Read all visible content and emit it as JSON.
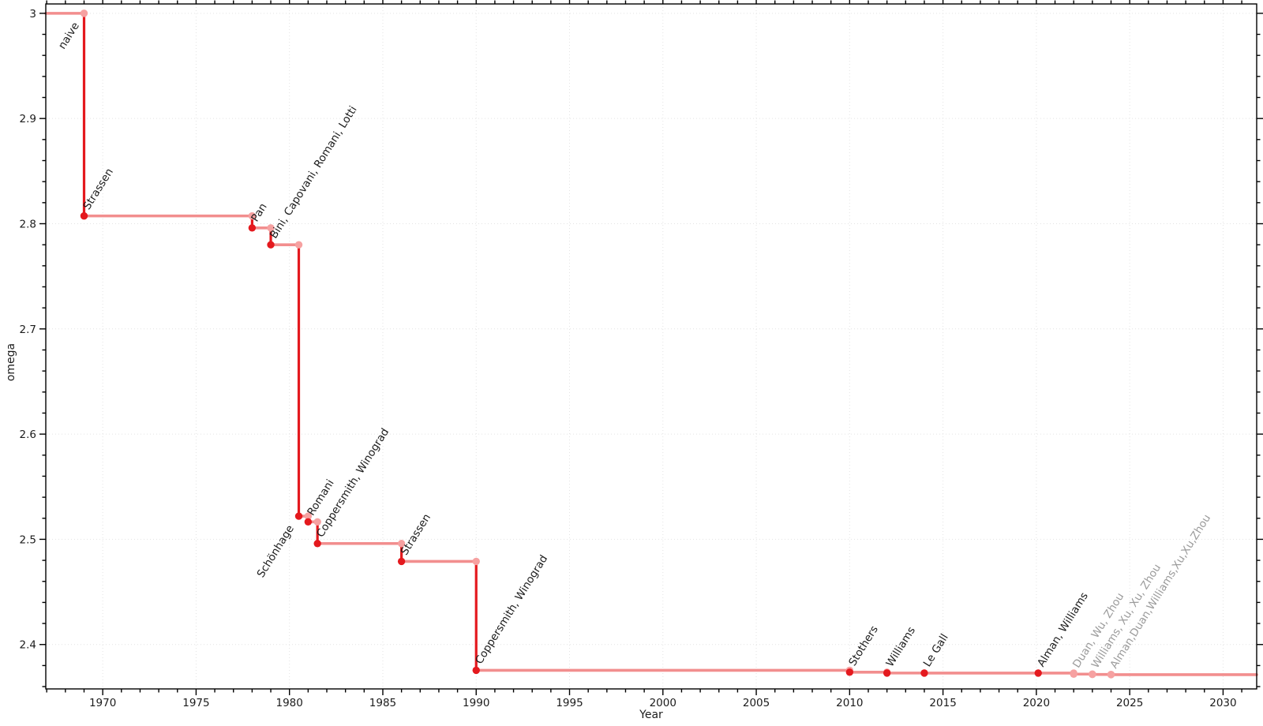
{
  "chart_data": {
    "type": "line",
    "subtype": "step-post",
    "title": "",
    "xlabel": "Year",
    "ylabel": "omega",
    "xlim": [
      1966.95,
      2031.8
    ],
    "ylim": [
      2.3578,
      3.0089
    ],
    "xticks": [
      {
        "value": 1970,
        "label": "1970"
      },
      {
        "value": 1975,
        "label": "1975"
      },
      {
        "value": 1980,
        "label": "1980"
      },
      {
        "value": 1985,
        "label": "1985"
      },
      {
        "value": 1990,
        "label": "1990"
      },
      {
        "value": 1995,
        "label": "1995"
      },
      {
        "value": 2000,
        "label": "2000"
      },
      {
        "value": 2005,
        "label": "2005"
      },
      {
        "value": 2010,
        "label": "2010"
      },
      {
        "value": 2015,
        "label": "2015"
      },
      {
        "value": 2020,
        "label": "2020"
      },
      {
        "value": 2025,
        "label": "2025"
      },
      {
        "value": 2030,
        "label": "2030"
      }
    ],
    "yticks": [
      {
        "value": 2.4,
        "label": "2.4"
      },
      {
        "value": 2.5,
        "label": "2.5"
      },
      {
        "value": 2.6,
        "label": "2.6"
      },
      {
        "value": 2.7,
        "label": "2.7"
      },
      {
        "value": 2.8,
        "label": "2.8"
      },
      {
        "value": 2.9,
        "label": "2.9"
      },
      {
        "value": 3.0,
        "label": "3"
      }
    ],
    "x_minor_step": 1,
    "y_minor_step": 0.02,
    "grid": "major-dotted",
    "legend": "none",
    "baseline": {
      "label": "naive",
      "omega": 3.0,
      "label_anchor": "end",
      "status": "established"
    },
    "events": [
      {
        "label": "Strassen",
        "year": 1969.0,
        "omega": 2.8074,
        "status": "established",
        "label_anchor": "start"
      },
      {
        "label": "Pan",
        "year": 1978.0,
        "omega": 2.796,
        "status": "established",
        "label_anchor": "start"
      },
      {
        "label": "Bini, Capovani, Romani, Lotti",
        "year": 1979.0,
        "omega": 2.78,
        "status": "established",
        "label_anchor": "start"
      },
      {
        "label": "Schönhage",
        "year": 1980.5,
        "omega": 2.522,
        "status": "established",
        "label_anchor": "end"
      },
      {
        "label": "Romani",
        "year": 1981.0,
        "omega": 2.5166,
        "status": "established",
        "label_anchor": "start"
      },
      {
        "label": "Coppersmith, Winograd",
        "year": 1981.5,
        "omega": 2.496,
        "status": "established",
        "label_anchor": "start"
      },
      {
        "label": "Strassen",
        "year": 1986.0,
        "omega": 2.479,
        "status": "established",
        "label_anchor": "start"
      },
      {
        "label": "Coppersmith, Winograd",
        "year": 1990.0,
        "omega": 2.3755,
        "status": "established",
        "label_anchor": "start"
      },
      {
        "label": "Stothers",
        "year": 2010.0,
        "omega": 2.3737,
        "status": "established",
        "label_anchor": "start"
      },
      {
        "label": "Williams",
        "year": 2012.0,
        "omega": 2.3729,
        "status": "established",
        "label_anchor": "start"
      },
      {
        "label": "Le Gall",
        "year": 2014.0,
        "omega": 2.3728639,
        "status": "established",
        "label_anchor": "start"
      },
      {
        "label": "Alman, Williams",
        "year": 2020.1,
        "omega": 2.3728596,
        "status": "established",
        "label_anchor": "start"
      },
      {
        "label": "Duan, Wu, Zhou",
        "year": 2022.0,
        "omega": 2.371866,
        "status": "recent",
        "label_anchor": "start"
      },
      {
        "label": "Williams, Xu, Xu, Zhou",
        "year": 2023.0,
        "omega": 2.371552,
        "status": "recent",
        "label_anchor": "start"
      },
      {
        "label": "Alman,Duan,Williams,Xu,Xu,Zhou",
        "year": 2024.0,
        "omega": 2.371339,
        "status": "recent",
        "label_anchor": "start"
      }
    ]
  },
  "colors": {
    "step_horizontal": "#f28e8e",
    "step_vertical": "#e4191e",
    "point_established": "#e4191e",
    "point_corner": "#f6a1a1",
    "point_recent": "#f6a1a1",
    "label_established": "#1c1c1c",
    "label_recent": "#9b9b9b",
    "tick_label": "#1c1c1c",
    "grid": "#e3e3e3",
    "frame": "#000000",
    "background": "#ffffff"
  }
}
